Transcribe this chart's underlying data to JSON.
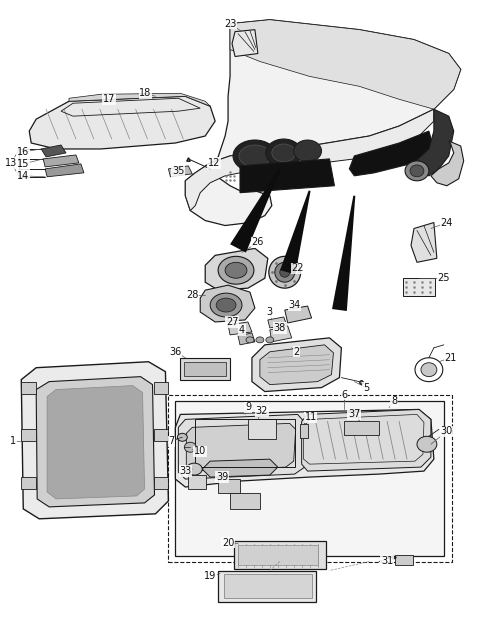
{
  "bg_color": "#ffffff",
  "fig_width": 4.8,
  "fig_height": 6.31,
  "dpi": 100,
  "lc": "#1a1a1a",
  "fs": 7.0,
  "tc": "#111111"
}
